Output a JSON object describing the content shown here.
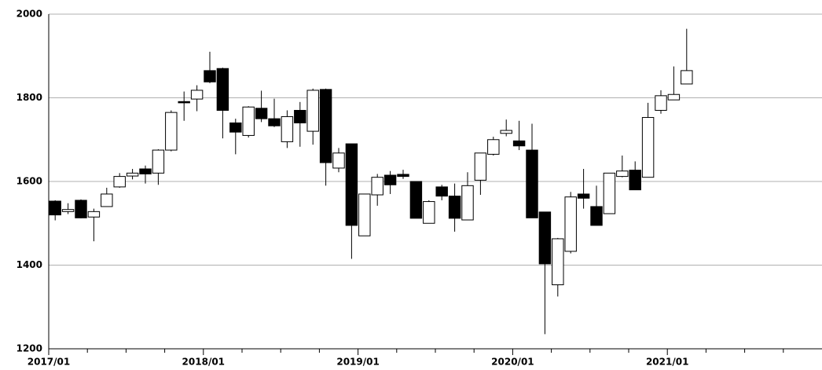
{
  "chart_data": {
    "type": "candlestick",
    "categories": [
      "2017/01",
      null,
      null,
      null,
      null,
      null,
      null,
      null,
      null,
      null,
      null,
      null,
      "2018/01",
      null,
      null,
      null,
      null,
      null,
      null,
      null,
      null,
      null,
      null,
      null,
      "2019/01",
      null,
      null,
      null,
      null,
      null,
      null,
      null,
      null,
      null,
      null,
      null,
      "2020/01",
      null,
      null,
      null,
      null,
      null,
      null,
      null,
      null,
      null,
      null,
      null,
      "2021/01",
      null,
      null,
      null,
      null,
      null,
      null,
      null,
      null,
      null,
      null,
      null
    ],
    "open": [
      1553,
      1528,
      1555,
      1515,
      1540,
      1587,
      1613,
      1630,
      1620,
      1675,
      1791,
      1797,
      1865,
      1870,
      1740,
      1710,
      1775,
      1750,
      1695,
      1770,
      1720,
      1820,
      1632,
      1690,
      1470,
      1568,
      1615,
      1617,
      1600,
      1500,
      1587,
      1565,
      1508,
      1603,
      1665,
      1715,
      1697,
      1675,
      1527,
      1353,
      1433,
      1570,
      1540,
      1523,
      1612,
      1627,
      1610,
      1770,
      1795,
      1833,
      null,
      null,
      null,
      null,
      null,
      null,
      null,
      null,
      null,
      null
    ],
    "high": [
      1555,
      1548,
      1557,
      1535,
      1585,
      1620,
      1630,
      1638,
      1677,
      1770,
      1815,
      1830,
      1910,
      1872,
      1750,
      1780,
      1817,
      1798,
      1770,
      1790,
      1822,
      1822,
      1680,
      1690,
      1570,
      1618,
      1625,
      1628,
      1600,
      1555,
      1592,
      1595,
      1622,
      1668,
      1707,
      1748,
      1745,
      1738,
      1527,
      1465,
      1575,
      1630,
      1590,
      1620,
      1662,
      1648,
      1788,
      1818,
      1875,
      1965,
      null,
      null,
      null,
      null,
      null,
      null,
      null,
      null,
      null,
      null
    ],
    "low": [
      1507,
      1522,
      1512,
      1457,
      1540,
      1585,
      1605,
      1595,
      1592,
      1672,
      1745,
      1768,
      1835,
      1703,
      1665,
      1705,
      1742,
      1730,
      1680,
      1683,
      1688,
      1590,
      1622,
      1415,
      1470,
      1542,
      1570,
      1606,
      1512,
      1500,
      1555,
      1480,
      1508,
      1568,
      1662,
      1708,
      1675,
      1513,
      1235,
      1325,
      1428,
      1535,
      1495,
      1523,
      1610,
      1580,
      1610,
      1762,
      1795,
      1833,
      null,
      null,
      null,
      null,
      null,
      null,
      null,
      null,
      null,
      null
    ],
    "close": [
      1520,
      1533,
      1513,
      1528,
      1570,
      1612,
      1620,
      1618,
      1675,
      1765,
      1788,
      1818,
      1838,
      1770,
      1718,
      1778,
      1750,
      1733,
      1755,
      1740,
      1818,
      1645,
      1668,
      1495,
      1570,
      1610,
      1592,
      1612,
      1512,
      1552,
      1565,
      1512,
      1590,
      1668,
      1700,
      1722,
      1685,
      1513,
      1403,
      1463,
      1563,
      1560,
      1495,
      1620,
      1625,
      1580,
      1753,
      1805,
      1808,
      1865,
      null,
      null,
      null,
      null,
      null,
      null,
      null,
      null,
      null,
      null
    ],
    "up_color": "#ffffff",
    "down_color": "#000000",
    "ylim": [
      1200,
      2000
    ],
    "yticks": [
      1200,
      1400,
      1600,
      1800,
      2000
    ],
    "grid": true
  }
}
